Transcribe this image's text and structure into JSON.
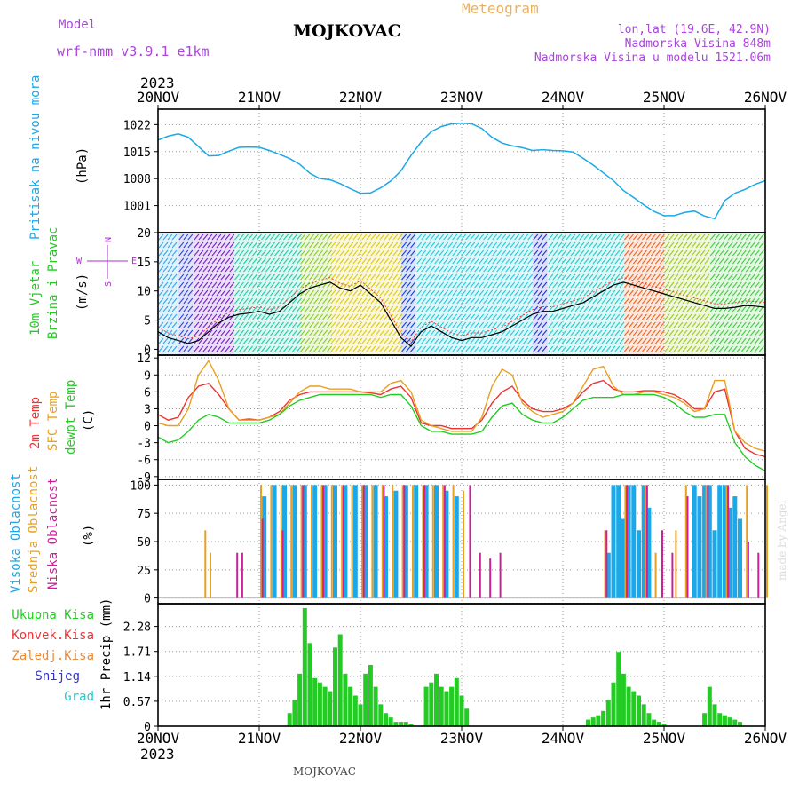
{
  "header": {
    "model_label": "Model",
    "model_name": "wrf-nmm_v3.9.1 e1km",
    "station": "MOJKOVAC",
    "product": "Meteogram",
    "lonlat": "lon,lat (19.6E, 42.9N)",
    "elevation": "Nadmorska Visina 848m",
    "model_elevation": "Nadmorska Visina u modelu 1521.06m",
    "year_top": "2023",
    "year_bottom": "2023",
    "footer_station": "MOJKOVAC",
    "credit": "made by Angel"
  },
  "colors": {
    "pressure": "#1aa8e8",
    "temp2m": "#ee3333",
    "sfc": "#e8a020",
    "dewpt": "#22cc22",
    "high_cloud": "#1aa8e8",
    "mid_cloud": "#e8a020",
    "low_cloud": "#cc2299",
    "total_precip": "#22cc22",
    "conv_precip": "#ee3333",
    "freezing": "#ee8833",
    "snow": "#3333cc",
    "hail": "#22cccc",
    "wind_label": "#22cc22",
    "compass": "#aa33cc",
    "wind_gust": "#ee3333"
  },
  "chart_data": [
    {
      "type": "line",
      "panel": "pressure",
      "ylabel_main": "Pritisak na nivou mora",
      "unit": "(hPa)",
      "yticks": [
        1001,
        1008,
        1015,
        1022
      ],
      "ylim": [
        994,
        1026
      ],
      "x_categories": [
        "20NOV",
        "21NOV",
        "22NOV",
        "23NOV",
        "24NOV",
        "25NOV",
        "26NOV"
      ],
      "x": [
        0,
        0.1,
        0.2,
        0.3,
        0.4,
        0.5,
        0.6,
        0.7,
        0.8,
        0.9,
        1.0,
        1.1,
        1.2,
        1.3,
        1.4,
        1.5,
        1.6,
        1.7,
        1.8,
        1.9,
        2.0,
        2.1,
        2.2,
        2.3,
        2.4,
        2.5,
        2.6,
        2.7,
        2.8,
        2.9,
        3.0,
        3.1,
        3.2,
        3.3,
        3.4,
        3.5,
        3.6,
        3.7,
        3.8,
        3.9,
        4.0,
        4.1,
        4.2,
        4.3,
        4.4,
        4.5,
        4.6,
        4.7,
        4.8,
        4.9,
        5.0,
        5.1,
        5.2,
        5.3,
        5.4,
        5.5,
        5.6,
        5.7,
        5.8,
        5.9,
        6.0
      ],
      "series": [
        {
          "values": [
            1018,
            1019,
            1019.6,
            1018.7,
            1016.3,
            1013.9,
            1014,
            1015.1,
            1016.1,
            1016.2,
            1016.1,
            1015.3,
            1014.3,
            1013.2,
            1011.7,
            1009.4,
            1008,
            1007.7,
            1006.7,
            1005.4,
            1004.2,
            1004.3,
            1005.6,
            1007.4,
            1010,
            1014,
            1017.5,
            1020.2,
            1021.5,
            1022.2,
            1022.4,
            1022.2,
            1021,
            1018.7,
            1017.2,
            1016.5,
            1016,
            1015.3,
            1015.5,
            1015.3,
            1015.2,
            1014.9,
            1013.3,
            1011.5,
            1009.5,
            1007.5,
            1004.9,
            1003.1,
            1001.2,
            999.5,
            998.4,
            998.4,
            999.2,
            999.6,
            998.3,
            997.6,
            1002.3,
            1004.2,
            1005.2,
            1006.5,
            1007.5
          ]
        }
      ]
    },
    {
      "type": "line",
      "panel": "wind",
      "ylabel_main": "10m Vjetar",
      "ylabel_sub": "Brzina i Pravac",
      "unit": "(m/s)",
      "compass_n": "N",
      "compass_w": "W",
      "compass_e": "E",
      "compass_s": "S",
      "yticks": [
        0,
        5,
        10,
        15,
        20
      ],
      "ylim": [
        -1,
        20
      ],
      "x": [
        0,
        0.1,
        0.2,
        0.3,
        0.4,
        0.5,
        0.6,
        0.7,
        0.8,
        0.9,
        1.0,
        1.1,
        1.2,
        1.3,
        1.4,
        1.5,
        1.6,
        1.7,
        1.8,
        1.9,
        2.0,
        2.1,
        2.2,
        2.3,
        2.4,
        2.5,
        2.6,
        2.7,
        2.8,
        2.9,
        3.0,
        3.1,
        3.2,
        3.3,
        3.4,
        3.5,
        3.6,
        3.7,
        3.8,
        3.9,
        4.0,
        4.1,
        4.2,
        4.3,
        4.4,
        4.5,
        4.6,
        4.7,
        4.8,
        4.9,
        5.0,
        5.1,
        5.2,
        5.3,
        5.4,
        5.5,
        5.6,
        5.7,
        5.8,
        5.9,
        6.0
      ],
      "series": [
        {
          "values": [
            3,
            2,
            1.5,
            1,
            1.5,
            3,
            4.5,
            5.5,
            6,
            6.2,
            6.5,
            6,
            6.5,
            8,
            9.5,
            10.5,
            11,
            11.5,
            10.5,
            10,
            11,
            9.5,
            8,
            5,
            2,
            0.5,
            3,
            4,
            3,
            2,
            1.5,
            2,
            2,
            2.5,
            3,
            4,
            5,
            6,
            6.5,
            6.5,
            7,
            7.5,
            8,
            9,
            10,
            11,
            11.5,
            11,
            10.5,
            10,
            9.5,
            9,
            8.5,
            8,
            7.5,
            7,
            7,
            7.2,
            7.5,
            7.4,
            7.2
          ]
        }
      ]
    },
    {
      "type": "line",
      "panel": "temperature",
      "ylabel_main": "2m Temp",
      "ylabel_sub": "SFC Temp",
      "ylabel_sub2": "dewpt Temp",
      "unit": "(C)",
      "yticks": [
        -9,
        -6,
        -3,
        0,
        3,
        6,
        9,
        12
      ],
      "ylim": [
        -9.5,
        12.5
      ],
      "x": [
        0,
        0.1,
        0.2,
        0.3,
        0.4,
        0.5,
        0.6,
        0.7,
        0.8,
        0.9,
        1.0,
        1.1,
        1.2,
        1.3,
        1.4,
        1.5,
        1.6,
        1.7,
        1.8,
        1.9,
        2.0,
        2.1,
        2.2,
        2.3,
        2.4,
        2.5,
        2.6,
        2.7,
        2.8,
        2.9,
        3.0,
        3.1,
        3.2,
        3.3,
        3.4,
        3.5,
        3.6,
        3.7,
        3.8,
        3.9,
        4.0,
        4.1,
        4.2,
        4.3,
        4.4,
        4.5,
        4.6,
        4.7,
        4.8,
        4.9,
        5.0,
        5.1,
        5.2,
        5.3,
        5.4,
        5.5,
        5.6,
        5.7,
        5.8,
        5.9,
        6.0
      ],
      "series": [
        {
          "name": "2m Temp",
          "values": [
            2,
            1,
            1.5,
            5,
            7,
            7.5,
            5.5,
            3,
            1,
            1.2,
            1,
            1.5,
            2.5,
            4.5,
            5.5,
            6,
            6,
            6,
            6,
            6,
            6,
            5.8,
            5.5,
            6.5,
            7,
            5,
            0.5,
            0,
            0,
            -0.5,
            -0.5,
            -0.5,
            1,
            4,
            6,
            7,
            4.5,
            3,
            2.5,
            2.5,
            3,
            4,
            6,
            7.5,
            8,
            6.5,
            6,
            6,
            6.2,
            6.2,
            6,
            5.5,
            4.5,
            3,
            3,
            6,
            6.5,
            -1,
            -4,
            -5,
            -5.5
          ]
        },
        {
          "name": "SFC Temp",
          "values": [
            0.5,
            0,
            0,
            3,
            9,
            11.5,
            8,
            3,
            1,
            1,
            1,
            1.5,
            2,
            4,
            6,
            7,
            7,
            6.5,
            6.5,
            6.5,
            6,
            6,
            6,
            7.5,
            8,
            6,
            1,
            0,
            -0.5,
            -1,
            -1,
            -1,
            1.5,
            7,
            10,
            9,
            4,
            2.5,
            1.5,
            2,
            2.5,
            4,
            7,
            10,
            10.5,
            7,
            5.5,
            5.5,
            6,
            6,
            5.5,
            5,
            4,
            2.5,
            3,
            8,
            8,
            -1,
            -3,
            -4,
            -4.5
          ]
        },
        {
          "name": "dewpt Temp",
          "values": [
            -2,
            -3,
            -2.5,
            -1,
            1,
            2,
            1.5,
            0.5,
            0.5,
            0.5,
            0.5,
            1,
            2,
            3.5,
            4.5,
            5,
            5.5,
            5.5,
            5.5,
            5.5,
            5.5,
            5.5,
            5,
            5.5,
            5.5,
            3.5,
            0,
            -1,
            -1,
            -1.5,
            -1.5,
            -1.5,
            -1,
            1.5,
            3.5,
            4,
            2,
            1,
            0.5,
            0.5,
            1.5,
            3,
            4.5,
            5,
            5,
            5,
            5.5,
            5.5,
            5.5,
            5.5,
            5,
            4,
            2.5,
            1.5,
            1.5,
            2,
            2,
            -3,
            -5.5,
            -7,
            -8
          ]
        }
      ]
    },
    {
      "type": "bar",
      "panel": "cloud",
      "ylabel_main": "Visoka Oblacnost",
      "ylabel_sub": "Srednja Oblacnost",
      "ylabel_sub2": "Niska Oblacnost",
      "unit": "(%)",
      "yticks": [
        0,
        25,
        50,
        75,
        100
      ],
      "ylim": [
        -5,
        105
      ],
      "series": [
        {
          "name": "Visoka Oblacnost",
          "x": [
            1.05,
            1.15,
            1.25,
            1.35,
            1.45,
            1.55,
            1.65,
            1.75,
            1.85,
            1.95,
            2.05,
            2.15,
            2.25,
            2.35,
            2.45,
            2.55,
            2.65,
            2.75,
            2.85,
            2.95,
            4.45,
            4.5,
            4.55,
            4.6,
            4.65,
            4.7,
            4.75,
            4.8,
            4.85,
            5.3,
            5.35,
            5.4,
            5.45,
            5.5,
            5.55,
            5.6,
            5.65,
            5.7,
            5.75
          ],
          "values": [
            90,
            100,
            100,
            100,
            100,
            100,
            100,
            100,
            100,
            100,
            100,
            100,
            90,
            95,
            100,
            100,
            100,
            100,
            95,
            90,
            40,
            100,
            100,
            70,
            100,
            100,
            60,
            100,
            80,
            100,
            90,
            100,
            100,
            60,
            100,
            100,
            80,
            90,
            70
          ]
        },
        {
          "name": "Srednja Oblacnost",
          "x": [
            0.45,
            0.5,
            1.0,
            1.1,
            1.2,
            1.3,
            1.4,
            1.5,
            1.6,
            1.7,
            1.8,
            1.9,
            2.0,
            2.1,
            2.2,
            2.3,
            2.4,
            2.5,
            2.6,
            2.7,
            2.8,
            2.9,
            3.0,
            4.4,
            4.6,
            4.8,
            4.9,
            5.1,
            5.2,
            5.4,
            5.6,
            5.8,
            6.0
          ],
          "values": [
            60,
            40,
            100,
            100,
            100,
            100,
            100,
            100,
            100,
            100,
            100,
            100,
            100,
            100,
            100,
            100,
            100,
            100,
            100,
            100,
            100,
            100,
            95,
            60,
            100,
            100,
            40,
            60,
            100,
            100,
            100,
            100,
            100
          ]
        },
        {
          "name": "Niska Oblacnost",
          "x": [
            0.8,
            0.85,
            1.05,
            1.25,
            1.45,
            1.65,
            1.85,
            2.05,
            2.25,
            2.45,
            2.65,
            2.85,
            3.1,
            3.2,
            3.3,
            3.4,
            4.45,
            4.65,
            4.85,
            5.0,
            5.1,
            5.25,
            5.45,
            5.65,
            5.85,
            5.95
          ],
          "values": [
            40,
            40,
            70,
            60,
            100,
            100,
            100,
            100,
            100,
            100,
            100,
            100,
            100,
            40,
            35,
            40,
            60,
            100,
            100,
            60,
            40,
            90,
            100,
            100,
            50,
            40
          ]
        }
      ]
    },
    {
      "type": "bar",
      "panel": "precip",
      "unit": "1hr Precip (mm)",
      "legend": [
        "Ukupna Kisa",
        "Konvek.Kisa",
        "Zaledj.Kisa",
        "Snijeg",
        "Grad"
      ],
      "yticks": [
        0,
        0.57,
        1.14,
        1.71,
        2.28
      ],
      "ylim": [
        0,
        2.8
      ],
      "series": [
        {
          "name": "Ukupna Kisa",
          "x": [
            1.3,
            1.35,
            1.4,
            1.45,
            1.5,
            1.55,
            1.6,
            1.65,
            1.7,
            1.75,
            1.8,
            1.85,
            1.9,
            1.95,
            2.0,
            2.05,
            2.1,
            2.15,
            2.2,
            2.25,
            2.3,
            2.35,
            2.4,
            2.45,
            2.5,
            2.65,
            2.7,
            2.75,
            2.8,
            2.85,
            2.9,
            2.95,
            3.0,
            3.05,
            4.25,
            4.3,
            4.35,
            4.4,
            4.45,
            4.5,
            4.55,
            4.6,
            4.65,
            4.7,
            4.75,
            4.8,
            4.85,
            4.9,
            4.95,
            5.0,
            5.4,
            5.45,
            5.5,
            5.55,
            5.6,
            5.65,
            5.7,
            5.75
          ],
          "values": [
            0.3,
            0.6,
            1.2,
            2.7,
            1.9,
            1.1,
            1,
            0.9,
            0.8,
            1.8,
            2.1,
            1.2,
            0.9,
            0.7,
            0.5,
            1.2,
            1.4,
            0.9,
            0.5,
            0.3,
            0.2,
            0.1,
            0.1,
            0.1,
            0.05,
            0.9,
            1.0,
            1.2,
            0.9,
            0.8,
            0.9,
            1.1,
            0.7,
            0.4,
            0.15,
            0.2,
            0.25,
            0.35,
            0.6,
            1.0,
            1.7,
            1.2,
            0.9,
            0.8,
            0.7,
            0.5,
            0.3,
            0.15,
            0.1,
            0.05,
            0.3,
            0.9,
            0.5,
            0.3,
            0.25,
            0.2,
            0.15,
            0.1
          ]
        }
      ]
    }
  ]
}
